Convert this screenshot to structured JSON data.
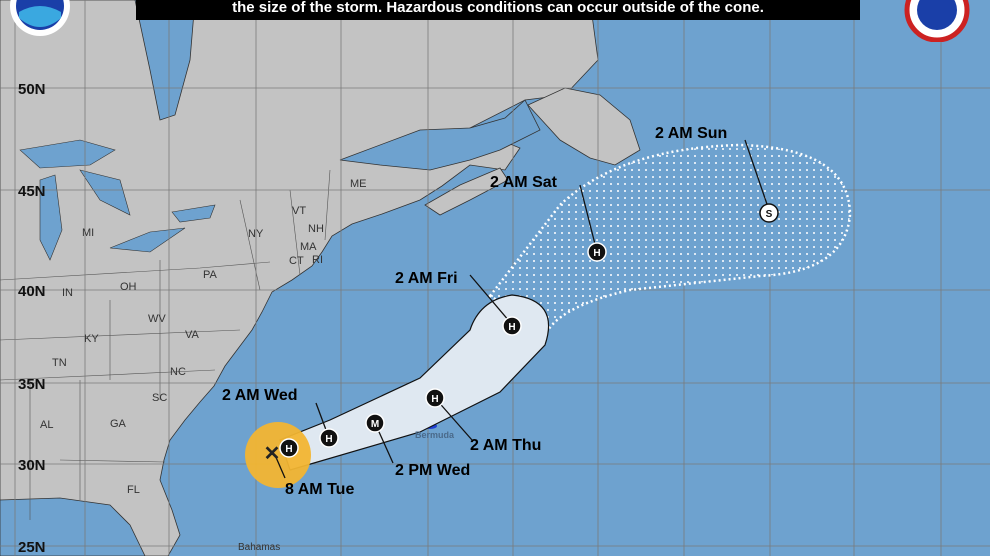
{
  "banner": {
    "text": "the size of the storm. Hazardous conditions can occur outside of the cone."
  },
  "logos": {
    "left": "NOAA",
    "right": "National Weather Service"
  },
  "colors": {
    "ocean": "#6ea2cf",
    "land": "#c3c3c3",
    "cone": "#dfe8f1",
    "current_wind": "#f2b531",
    "banner": "#000000"
  },
  "latitude_labels": [
    "50N",
    "45N",
    "40N",
    "35N",
    "30N",
    "25N"
  ],
  "states": [
    "ME",
    "VT",
    "NH",
    "NY",
    "MA",
    "CT",
    "RI",
    "PA",
    "MI",
    "OH",
    "IN",
    "WV",
    "VA",
    "KY",
    "NC",
    "TN",
    "SC",
    "GA",
    "AL",
    "FL"
  ],
  "places": {
    "bermuda": "Bermuda",
    "bahamas": "Bahamas"
  },
  "current_position": {
    "symbol": "x-icon",
    "label": "8 AM Tue"
  },
  "forecast_points": [
    {
      "symbol": "H",
      "label": ""
    },
    {
      "symbol": "H",
      "label": "2 AM Wed"
    },
    {
      "symbol": "M",
      "label": "2 PM Wed"
    },
    {
      "symbol": "H",
      "label": "2 AM Thu"
    },
    {
      "symbol": "H",
      "label": "2 AM Fri"
    },
    {
      "symbol": "H",
      "label": "2 AM Sat"
    },
    {
      "symbol": "S",
      "label": "2 AM Sun"
    }
  ]
}
